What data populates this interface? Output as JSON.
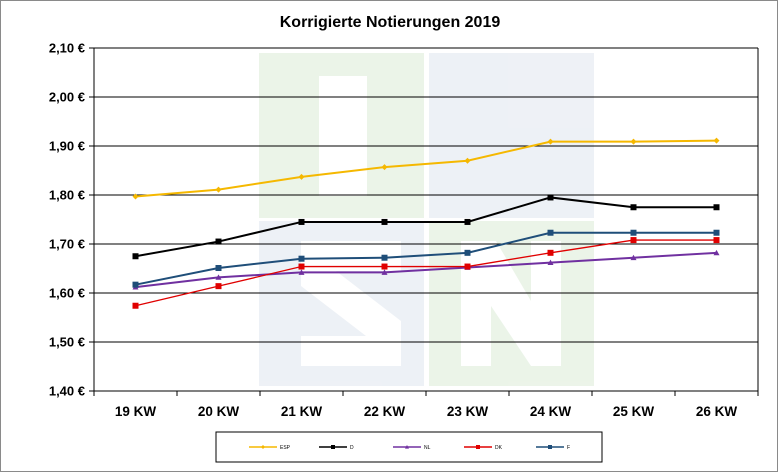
{
  "chart_data": {
    "type": "line",
    "title": "Korrigierte Notierungen 2019",
    "xlabel": "",
    "ylabel": "",
    "categories": [
      "19 KW",
      "20 KW",
      "21 KW",
      "22 KW",
      "23 KW",
      "24 KW",
      "25 KW",
      "26 KW"
    ],
    "y_ticks": [
      "1,40 €",
      "1,50 €",
      "1,60 €",
      "1,70 €",
      "1,80 €",
      "1,90 €",
      "2,00 €",
      "2,10 €"
    ],
    "ylim": [
      1.4,
      2.1
    ],
    "grid": true,
    "legend_position": "bottom",
    "series": [
      {
        "name": "ESP",
        "color": "#f5b800",
        "marker": "diamond",
        "values": [
          1.797,
          1.811,
          1.837,
          1.857,
          1.87,
          1.909,
          1.909,
          1.911
        ]
      },
      {
        "name": "D",
        "color": "#000000",
        "marker": "square",
        "values": [
          1.675,
          1.705,
          1.745,
          1.745,
          1.745,
          1.795,
          1.775,
          1.775
        ]
      },
      {
        "name": "NL",
        "color": "#7030a0",
        "marker": "triangle",
        "values": [
          1.612,
          1.632,
          1.642,
          1.642,
          1.652,
          1.662,
          1.672,
          1.682
        ]
      },
      {
        "name": "DK",
        "color": "#e00000",
        "marker": "square",
        "values": [
          1.574,
          1.614,
          1.654,
          1.654,
          1.654,
          1.682,
          1.708,
          1.708
        ]
      },
      {
        "name": "F",
        "color": "#1f4e79",
        "marker": "square",
        "values": [
          1.617,
          1.651,
          1.67,
          1.672,
          1.682,
          1.723,
          1.723,
          1.723
        ]
      }
    ]
  }
}
